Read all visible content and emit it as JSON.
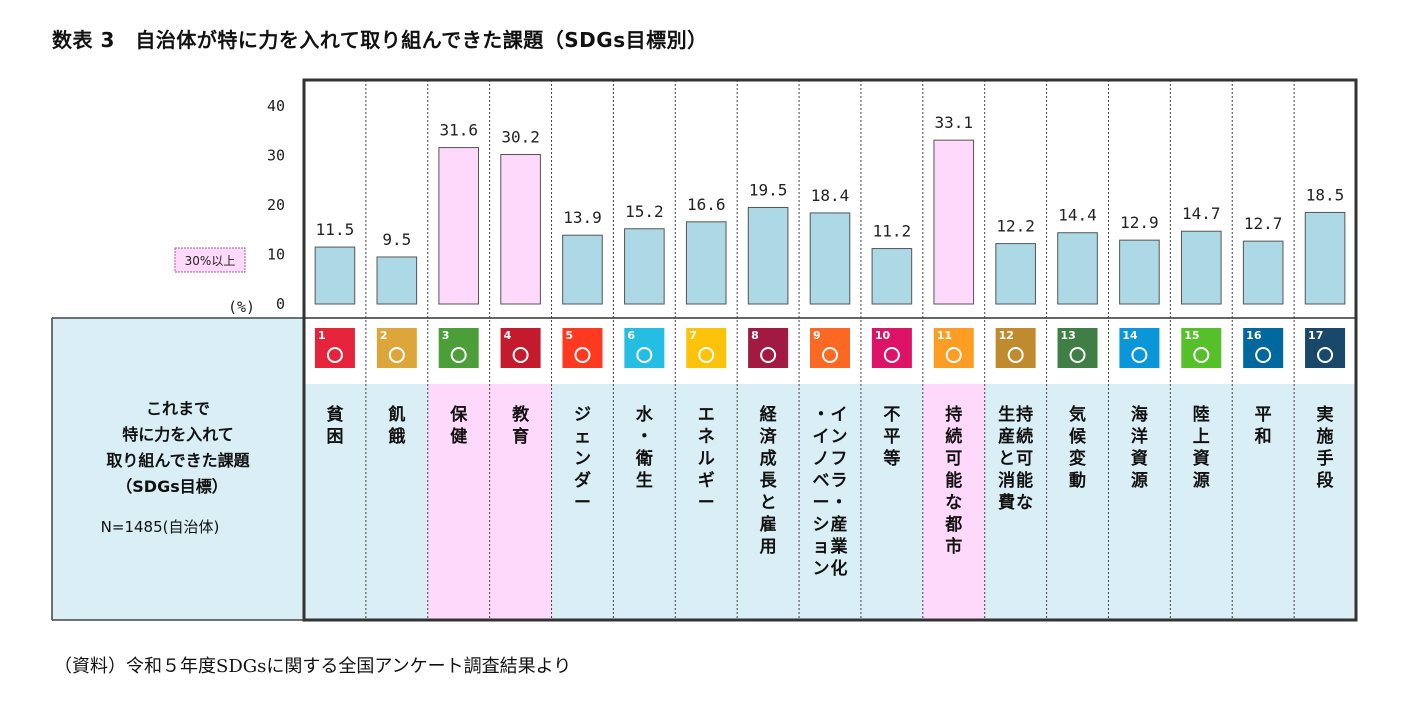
{
  "title": "数表 3　自治体が特に力を入れて取り組んできた課題（SDGs目標別）",
  "source": "（資料）令和５年度SDGsに関する全国アンケート調査結果より",
  "legend": {
    "label": "30%以上",
    "highlight_color": "#ffd9fb"
  },
  "side_panel": {
    "lines": [
      "これまで",
      "特に力を入れて",
      "取り組んできた課題",
      "（SDGs目標）"
    ],
    "n_label": "N=1485(自治体)"
  },
  "chart_data": {
    "type": "bar",
    "title": "数表 3　自治体が特に力を入れて取り組んできた課題（SDGs目標別）",
    "ylabel": "(%)",
    "ylim": [
      0,
      40
    ],
    "yticks": [
      0,
      10,
      20,
      30,
      40
    ],
    "threshold": 30,
    "bar_color": "#add8e6",
    "highlight_bar_color": "#ffd9fb",
    "label_bg": "#d9eef5",
    "categories": [
      {
        "goal": 1,
        "label": "貧困",
        "value": 11.5,
        "color": "#e5243b",
        "icon": "people-icon"
      },
      {
        "goal": 2,
        "label": "飢餓",
        "value": 9.5,
        "color": "#dda63a",
        "icon": "bowl-icon"
      },
      {
        "goal": 3,
        "label": "保健",
        "value": 31.6,
        "color": "#4c9f38",
        "icon": "heartbeat-icon"
      },
      {
        "goal": 4,
        "label": "教育",
        "value": 30.2,
        "color": "#c5192d",
        "icon": "book-icon"
      },
      {
        "goal": 5,
        "label": "ジェンダー",
        "value": 13.9,
        "color": "#ff3a21",
        "icon": "gender-icon"
      },
      {
        "goal": 6,
        "label": "水・衛生",
        "value": 15.2,
        "color": "#26bde2",
        "icon": "water-icon"
      },
      {
        "goal": 7,
        "label": "エネルギー",
        "value": 16.6,
        "color": "#fcc30b",
        "icon": "sun-icon"
      },
      {
        "goal": 8,
        "label": "経済成長と雇用",
        "value": 19.5,
        "color": "#a21942",
        "icon": "growth-chart-icon"
      },
      {
        "goal": 9,
        "label": "インフラ・産業化・イノベーション",
        "value": 18.4,
        "color": "#fd6925",
        "icon": "cubes-icon"
      },
      {
        "goal": 10,
        "label": "不平等",
        "value": 11.2,
        "color": "#dd1367",
        "icon": "equality-icon"
      },
      {
        "goal": 11,
        "label": "持続可能な都市",
        "value": 33.1,
        "color": "#fd9d24",
        "icon": "city-icon"
      },
      {
        "goal": 12,
        "label": "持続可能な生産と消費",
        "value": 12.2,
        "color": "#bf8b2e",
        "icon": "infinity-icon"
      },
      {
        "goal": 13,
        "label": "気候変動",
        "value": 14.4,
        "color": "#3f7e44",
        "icon": "eye-icon"
      },
      {
        "goal": 14,
        "label": "海洋資源",
        "value": 12.9,
        "color": "#0a97d9",
        "icon": "fish-icon"
      },
      {
        "goal": 15,
        "label": "陸上資源",
        "value": 14.7,
        "color": "#56c02b",
        "icon": "tree-icon"
      },
      {
        "goal": 16,
        "label": "平和",
        "value": 12.7,
        "color": "#00689d",
        "icon": "dove-icon"
      },
      {
        "goal": 17,
        "label": "実施手段",
        "value": 18.5,
        "color": "#19486a",
        "icon": "partnership-icon"
      }
    ]
  }
}
